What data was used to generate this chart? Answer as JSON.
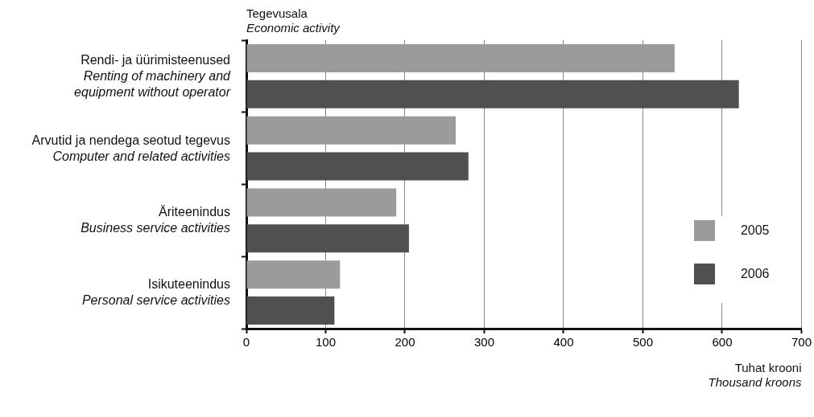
{
  "chart_data": {
    "type": "bar",
    "orientation": "horizontal",
    "ylabel": "Tegevusala\nEconomic activity",
    "xlabel": "Tuhat krooni\nThousand kroons",
    "categories": [
      "Rendi- ja üürimisteenused\nRenting of machinery and\nequipment without operator",
      "Arvutid ja nendega seotud tegevus\nComputer and related activities",
      "Äriteenindus\nBusiness service activities",
      "Isikuteenindus\nPersonal service activities"
    ],
    "series": [
      {
        "name": "2005",
        "color": "#9b9b9b",
        "values": [
          540,
          264,
          189,
          118
        ]
      },
      {
        "name": "2006",
        "color": "#505050",
        "values": [
          621,
          280,
          205,
          111
        ]
      }
    ],
    "xlim": [
      0,
      700
    ],
    "xticks": [
      0,
      100,
      200,
      300,
      400,
      500,
      600,
      700
    ],
    "grid": "x",
    "legend": "bottom right"
  }
}
